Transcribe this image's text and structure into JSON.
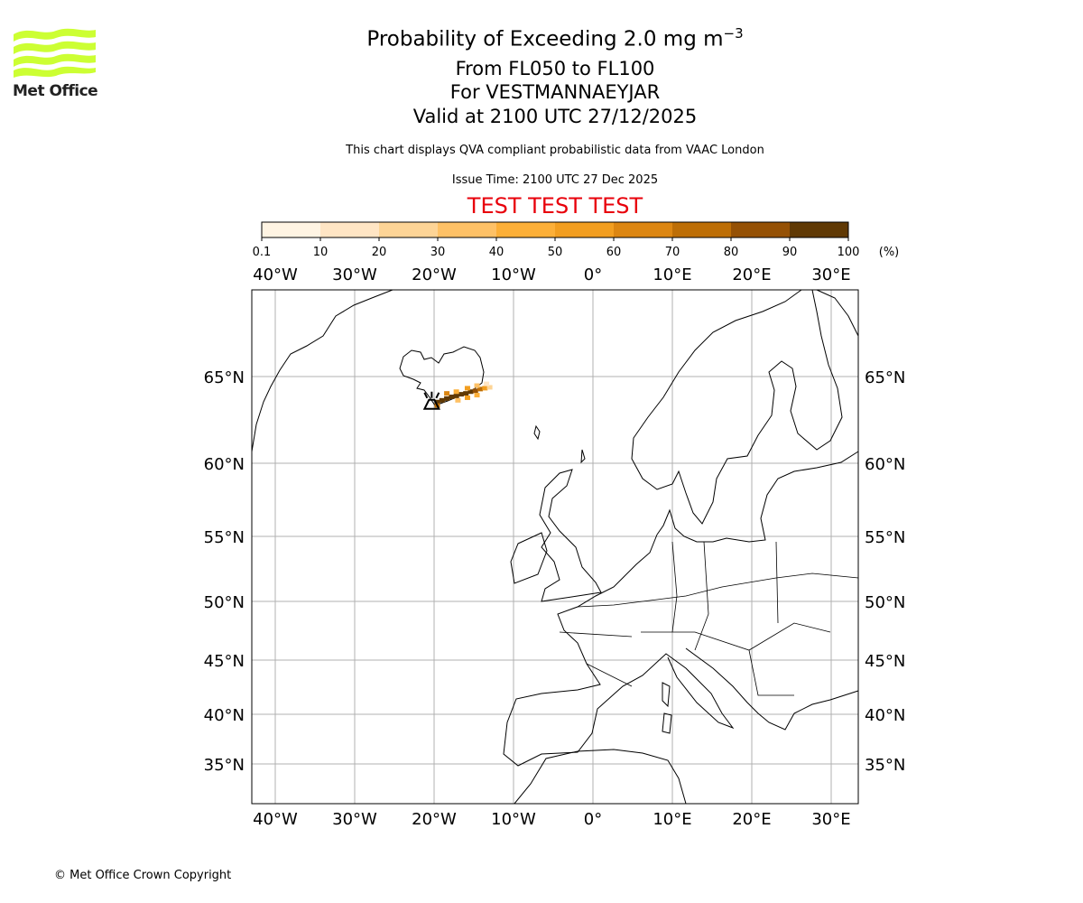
{
  "header": {
    "title_main": "Probability of Exceeding 2.0 mg m",
    "title_exp": "−3",
    "levels": "From FL050 to FL100",
    "location": "For VESTMANNAEYJAR",
    "valid": "Valid at 2100 UTC 27/12/2025",
    "subtitle": "This chart displays QVA compliant probabilistic data from VAAC London",
    "issue_time": "Issue Time: 2100 UTC 27 Dec 2025",
    "test_banner": "TEST TEST TEST"
  },
  "logo": {
    "text": "Met Office",
    "color": "#ccff33"
  },
  "footer": {
    "copyright": "© Met Office Crown Copyright"
  },
  "colorbar": {
    "ticks": [
      "0.1",
      "10",
      "20",
      "30",
      "40",
      "50",
      "60",
      "70",
      "80",
      "90",
      "100"
    ],
    "unit": "(%)",
    "colors": [
      "#fff4e3",
      "#ffe5c4",
      "#fdd496",
      "#fec166",
      "#fcaf38",
      "#f29e20",
      "#dc8612",
      "#bd6e06",
      "#955105",
      "#603904"
    ]
  },
  "chart_data": {
    "type": "heatmap",
    "projection": "map",
    "lon_ticks": [
      -40,
      -30,
      -20,
      -10,
      0,
      10,
      20,
      30
    ],
    "lon_labels": [
      "40°W",
      "30°W",
      "20°W",
      "10°W",
      "0°",
      "10°E",
      "20°E",
      "30°E"
    ],
    "lat_ticks": [
      65,
      60,
      55,
      50,
      45,
      40,
      35
    ],
    "lat_labels": [
      "65°N",
      "60°N",
      "55°N",
      "50°N",
      "45°N",
      "40°N",
      "35°N"
    ],
    "volcano": {
      "name": "VESTMANNAEYJAR",
      "lon": -20.3,
      "lat": 63.45
    },
    "plume_cells": [
      {
        "lon": -19.6,
        "lat": 63.45,
        "p": 95
      },
      {
        "lon": -19.0,
        "lat": 63.55,
        "p": 95
      },
      {
        "lon": -18.4,
        "lat": 63.65,
        "p": 95
      },
      {
        "lon": -17.8,
        "lat": 63.75,
        "p": 95
      },
      {
        "lon": -17.2,
        "lat": 63.8,
        "p": 95
      },
      {
        "lon": -16.6,
        "lat": 63.9,
        "p": 95
      },
      {
        "lon": -16.0,
        "lat": 63.95,
        "p": 95
      },
      {
        "lon": -15.4,
        "lat": 64.05,
        "p": 95
      },
      {
        "lon": -14.8,
        "lat": 64.1,
        "p": 85
      },
      {
        "lon": -14.2,
        "lat": 64.2,
        "p": 75
      },
      {
        "lon": -13.6,
        "lat": 64.25,
        "p": 55
      },
      {
        "lon": -13.0,
        "lat": 64.3,
        "p": 25
      },
      {
        "lon": -18.4,
        "lat": 63.95,
        "p": 65
      },
      {
        "lon": -17.2,
        "lat": 64.05,
        "p": 45
      },
      {
        "lon": -15.8,
        "lat": 64.25,
        "p": 55
      },
      {
        "lon": -14.6,
        "lat": 64.4,
        "p": 35
      },
      {
        "lon": -13.4,
        "lat": 64.5,
        "p": 15
      },
      {
        "lon": -17.0,
        "lat": 63.55,
        "p": 35
      },
      {
        "lon": -15.8,
        "lat": 63.7,
        "p": 55
      },
      {
        "lon": -14.6,
        "lat": 63.85,
        "p": 45
      },
      {
        "lon": -19.6,
        "lat": 63.25,
        "p": 75
      }
    ]
  }
}
